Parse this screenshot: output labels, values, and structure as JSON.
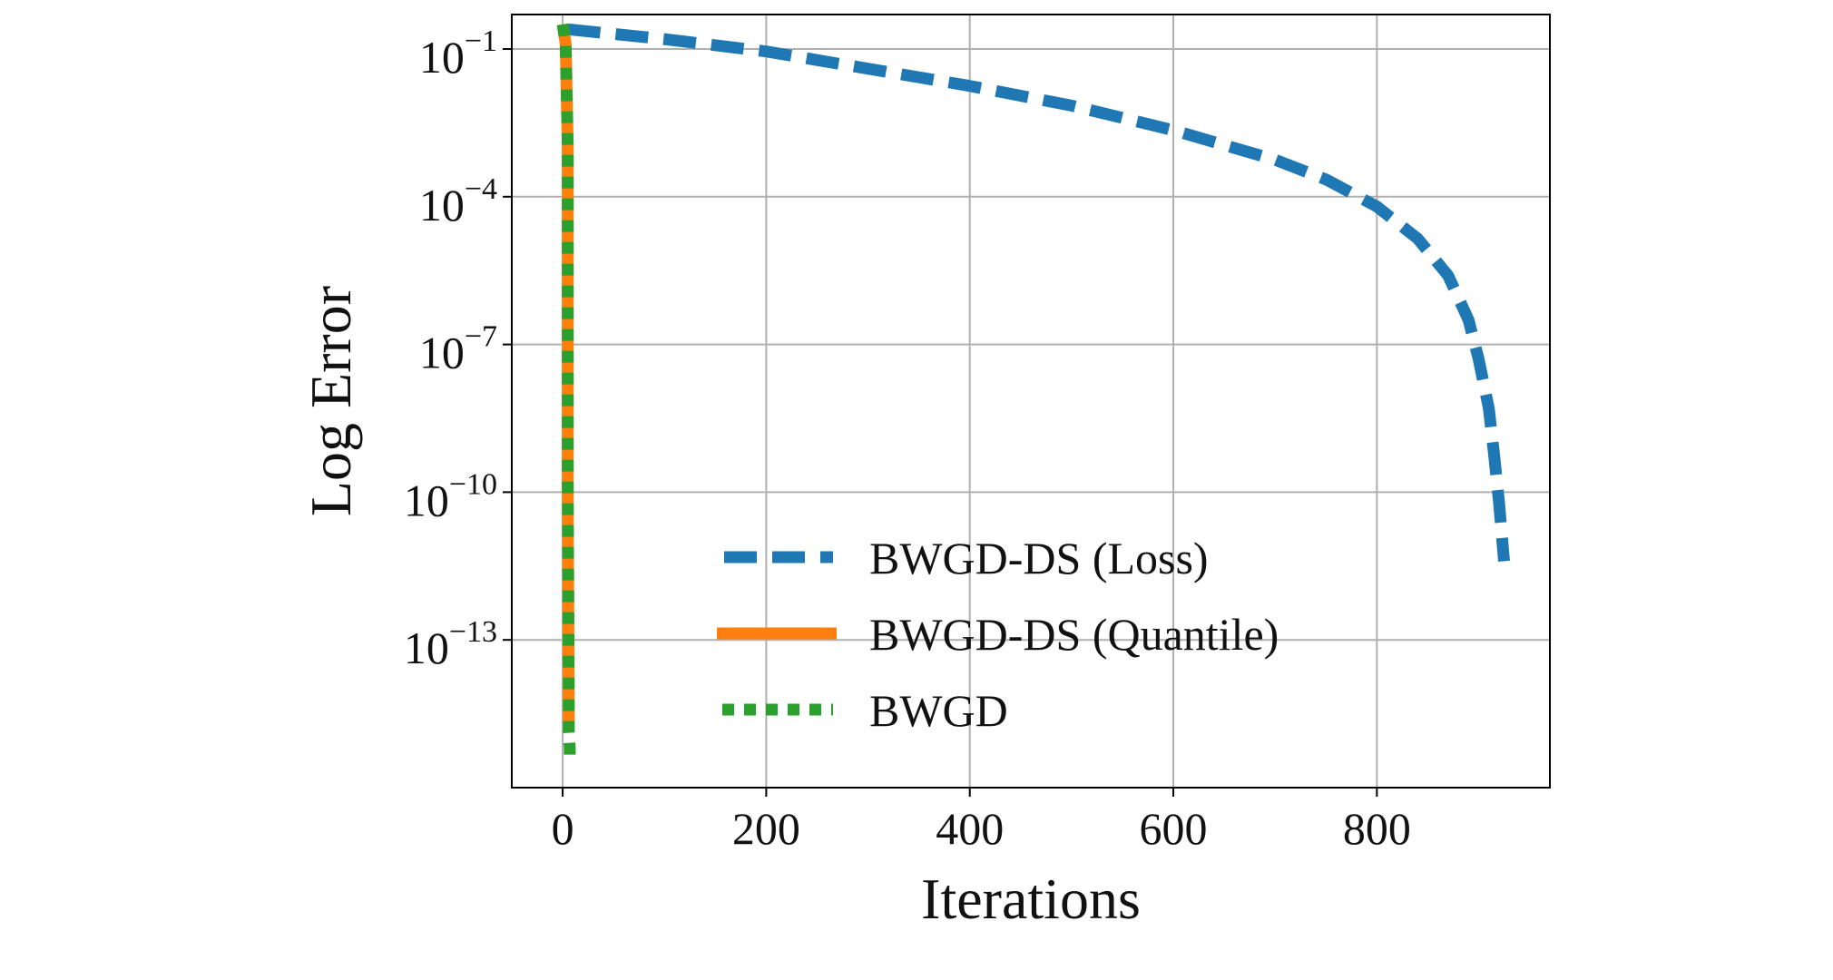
{
  "chart_data": {
    "type": "line",
    "title": "",
    "xlabel": "Iterations",
    "ylabel": "Log Error",
    "yscale": "log",
    "xlim": [
      -50,
      970
    ],
    "ylim_log10": [
      -16.0,
      -0.3
    ],
    "grid": true,
    "legend_position": "lower-center",
    "xticks": [
      {
        "value": 0,
        "label": "0"
      },
      {
        "value": 200,
        "label": "200"
      },
      {
        "value": 400,
        "label": "400"
      },
      {
        "value": 600,
        "label": "600"
      },
      {
        "value": 800,
        "label": "800"
      }
    ],
    "yticks": [
      {
        "exp": -1,
        "base": "10",
        "sup": "−1"
      },
      {
        "exp": -4,
        "base": "10",
        "sup": "−4"
      },
      {
        "exp": -7,
        "base": "10",
        "sup": "−7"
      },
      {
        "exp": -10,
        "base": "10",
        "sup": "−10"
      },
      {
        "exp": -13,
        "base": "10",
        "sup": "−13"
      }
    ],
    "series": [
      {
        "name": "BWGD-DS (Loss)",
        "color": "#1f77b4",
        "style": "dashed",
        "x": [
          5,
          100,
          200,
          300,
          400,
          500,
          600,
          700,
          750,
          800,
          840,
          870,
          890,
          900,
          910,
          915,
          920,
          925
        ],
        "log10_y": [
          -0.6,
          -0.8,
          -1.05,
          -1.4,
          -1.75,
          -2.15,
          -2.65,
          -3.25,
          -3.65,
          -4.2,
          -4.85,
          -5.6,
          -6.5,
          -7.3,
          -8.3,
          -9.2,
          -10.2,
          -11.4
        ]
      },
      {
        "name": "BWGD-DS (Quantile)",
        "color": "#ff7f0e",
        "style": "solid",
        "x": [
          0,
          3,
          5,
          5,
          6
        ],
        "log10_y": [
          -0.5,
          -0.9,
          -3.0,
          -10.0,
          -14.7
        ]
      },
      {
        "name": "BWGD",
        "color": "#2ca02c",
        "style": "dotted",
        "x": [
          0,
          3,
          5,
          5,
          6,
          6,
          7,
          7
        ],
        "log10_y": [
          -0.5,
          -0.9,
          -3.0,
          -10.0,
          -14.0,
          -14.85,
          -15.2,
          -15.5
        ]
      }
    ]
  }
}
